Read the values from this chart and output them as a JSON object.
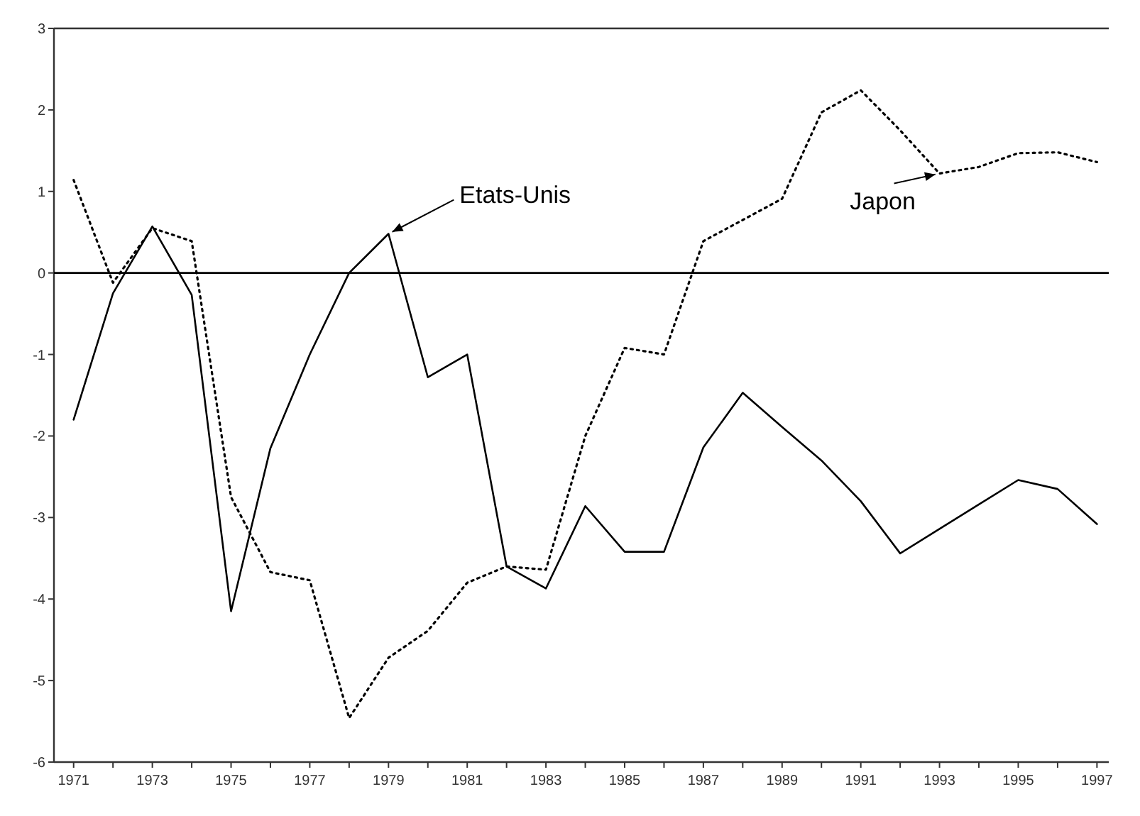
{
  "chart_data": {
    "type": "line",
    "x": [
      1971,
      1972,
      1973,
      1974,
      1975,
      1976,
      1977,
      1978,
      1979,
      1980,
      1981,
      1982,
      1983,
      1984,
      1985,
      1986,
      1987,
      1988,
      1989,
      1990,
      1991,
      1992,
      1993,
      1994,
      1995,
      1996,
      1997
    ],
    "series": [
      {
        "color": "#000000",
        "line_style": "solid",
        "values": [
          -1.8,
          -0.25,
          0.57,
          -0.27,
          -4.15,
          -2.15,
          -1.0,
          0.0,
          0.48,
          -1.28,
          -1.0,
          -3.6,
          -3.87,
          -2.86,
          -3.42,
          -3.42,
          -2.14,
          -1.47,
          -1.89,
          -2.3,
          -2.8,
          -3.44,
          -3.14,
          -2.84,
          -2.54,
          -2.65,
          -3.08
        ]
      },
      {
        "color": "#000000",
        "line_style": "dotted",
        "values": [
          1.14,
          -0.12,
          0.55,
          0.39,
          -2.75,
          -3.67,
          -3.77,
          -5.46,
          -4.72,
          -4.39,
          -3.8,
          -3.6,
          -3.64,
          -2.0,
          -0.92,
          -1.0,
          0.39,
          0.65,
          0.91,
          1.97,
          2.24,
          1.75,
          1.22,
          1.3,
          1.47,
          1.48,
          1.36
        ]
      }
    ],
    "xlim": [
      1970.5,
      1997.3
    ],
    "xticks": [
      1971,
      {
        "value": 1972,
        "label": null
      },
      1973,
      {
        "value": 1974,
        "label": null
      },
      1975,
      {
        "value": 1976,
        "label": null
      },
      1977,
      {
        "value": 1978,
        "label": null
      },
      1979,
      {
        "value": 1980,
        "label": null
      },
      1981,
      {
        "value": 1982,
        "label": null
      },
      1983,
      {
        "value": 1984,
        "label": null
      },
      1985,
      {
        "value": 1986,
        "label": null
      },
      1987,
      {
        "value": 1988,
        "label": null
      },
      1989,
      {
        "value": 1990,
        "label": null
      },
      1991,
      {
        "value": 1992,
        "label": null
      },
      1993,
      {
        "value": 1994,
        "label": null
      },
      1995,
      {
        "value": 1996,
        "label": null
      },
      1997
    ],
    "ylim": [
      -6,
      3
    ],
    "yticks": [
      -6,
      -5,
      -4,
      -3,
      -2,
      -1,
      0,
      1,
      2,
      3
    ],
    "ref_lines": [
      {
        "axis": "y",
        "value": 0
      }
    ],
    "annotations": [
      {
        "text": "Etats-Unis",
        "x": 1979,
        "y": 0.48
      },
      {
        "text": "Japon",
        "x": 1993,
        "y": 1.22
      }
    ],
    "marker": "none"
  }
}
